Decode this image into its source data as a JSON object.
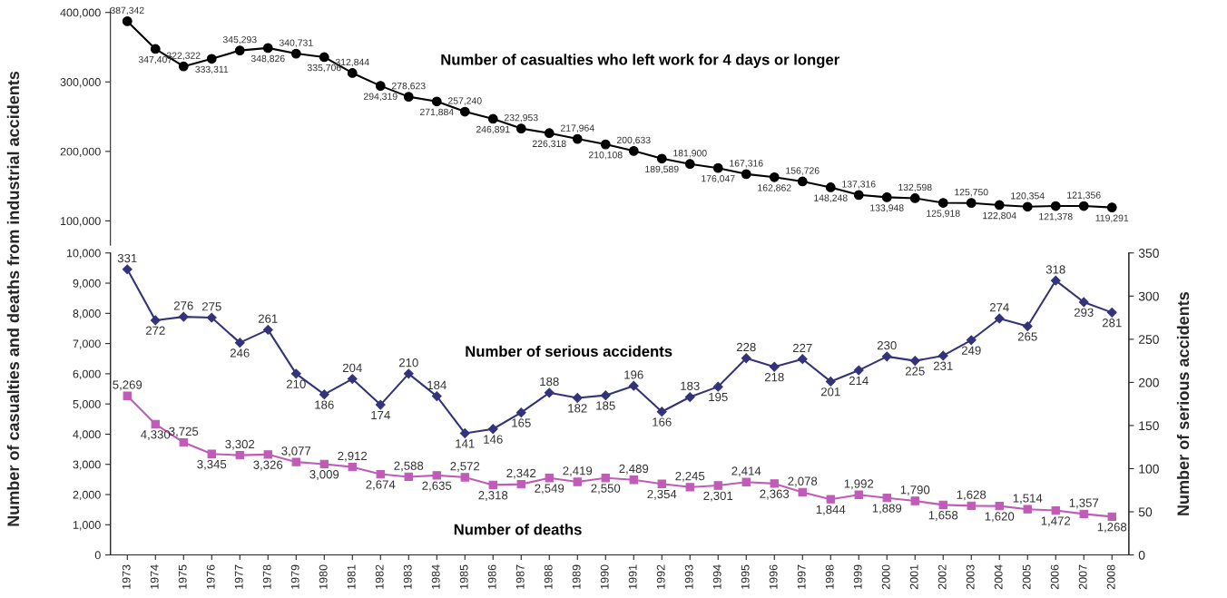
{
  "chart_data": [
    {
      "type": "line",
      "categories": [
        "1973",
        "1974",
        "1975",
        "1976",
        "1977",
        "1978",
        "1979",
        "1980",
        "1981",
        "1982",
        "1983",
        "1984",
        "1985",
        "1986",
        "1987",
        "1988",
        "1989",
        "1990",
        "1991",
        "1992",
        "1993",
        "1994",
        "1995",
        "1996",
        "1997",
        "1998",
        "1999",
        "2000",
        "2001",
        "2002",
        "2003",
        "2004",
        "2005",
        "2006",
        "2007",
        "2008"
      ],
      "series": [
        {
          "name": "Number of casualties who left work for 4 days or longer",
          "color": "#000000",
          "marker": "circle",
          "values": [
            387342,
            347407,
            322322,
            333311,
            345293,
            348826,
            340731,
            335706,
            312844,
            294319,
            278623,
            271884,
            257240,
            246891,
            232953,
            226318,
            217964,
            210108,
            200633,
            189589,
            181900,
            176047,
            167316,
            162862,
            156726,
            148248,
            137316,
            133948,
            132598,
            125918,
            125750,
            122804,
            120354,
            121378,
            121356,
            119291
          ],
          "value_labels": [
            "387,342",
            "347,407",
            "322,322",
            "333,311",
            "345,293",
            "348,826",
            "340,731",
            "335,706",
            "312,844",
            "294,319",
            "278,623",
            "271,884",
            "257,240",
            "246,891",
            "232,953",
            "226,318",
            "217,964",
            "210,108",
            "200,633",
            "189,589",
            "181,900",
            "176,047",
            "167,316",
            "162,862",
            "156,726",
            "148,248",
            "137,316",
            "133,948",
            "132,598",
            "125,918",
            "125,750",
            "122,804",
            "120,354",
            "121,378",
            "121,356",
            "119,291"
          ]
        }
      ],
      "ylim": [
        65000,
        405000
      ],
      "yticks": [
        {
          "value": 100000,
          "label": "100,000"
        },
        {
          "value": 200000,
          "label": "200,000"
        },
        {
          "value": 300000,
          "label": "300,000"
        },
        {
          "value": 400000,
          "label": "400,000"
        }
      ],
      "tick_labels": "y"
    },
    {
      "type": "line",
      "categories": [
        "1973",
        "1974",
        "1975",
        "1976",
        "1977",
        "1978",
        "1979",
        "1980",
        "1981",
        "1982",
        "1983",
        "1984",
        "1985",
        "1986",
        "1987",
        "1988",
        "1989",
        "1990",
        "1991",
        "1992",
        "1993",
        "1994",
        "1995",
        "1996",
        "1997",
        "1998",
        "1999",
        "2000",
        "2001",
        "2002",
        "2003",
        "2004",
        "2005",
        "2006",
        "2007",
        "2008"
      ],
      "ylabel": "Number of casualties and deaths from industrial accidents",
      "y2label": "Number of serious accidents",
      "series": [
        {
          "name": "Number of serious accidents",
          "color": "#33337a",
          "marker": "diamond",
          "axis": "y2",
          "values": [
            331,
            272,
            276,
            275,
            246,
            261,
            210,
            186,
            204,
            174,
            210,
            184,
            141,
            146,
            165,
            188,
            182,
            185,
            196,
            166,
            183,
            195,
            228,
            218,
            227,
            201,
            214,
            230,
            225,
            231,
            249,
            274,
            265,
            318,
            293,
            281
          ]
        },
        {
          "name": "Number of deaths",
          "color": "#c05cb8",
          "marker": "square",
          "values": [
            5269,
            4330,
            3725,
            3345,
            3302,
            3326,
            3077,
            3009,
            2912,
            2674,
            2588,
            2635,
            2572,
            2318,
            2342,
            2549,
            2419,
            2550,
            2489,
            2354,
            2245,
            2301,
            2414,
            2363,
            2078,
            1844,
            1992,
            1889,
            1790,
            1658,
            1628,
            1620,
            1514,
            1472,
            1357,
            1268
          ],
          "value_labels": [
            "5,269",
            "4,330",
            "3,725",
            "3,345",
            "3,302",
            "3,326",
            "3,077",
            "3,009",
            "2,912",
            "2,674",
            "2,588",
            "2,635",
            "2,572",
            "2,318",
            "2,342",
            "2,549",
            "2,419",
            "2,550",
            "2,489",
            "2,354",
            "2,245",
            "2,301",
            "2,414",
            "2,363",
            "2,078",
            "1,844",
            "1,992",
            "1,889",
            "1,790",
            "1,658",
            "1,628",
            "1,620",
            "1,514",
            "1,472",
            "1,357",
            "1,268"
          ]
        }
      ],
      "ylim": [
        0,
        10000
      ],
      "yticks": [
        0,
        {
          "value": 1000,
          "label": "1,000"
        },
        {
          "value": 2000,
          "label": "2,000"
        },
        {
          "value": 3000,
          "label": "3,000"
        },
        {
          "value": 4000,
          "label": "4,000"
        },
        {
          "value": 5000,
          "label": "5,000"
        },
        {
          "value": 6000,
          "label": "6,000"
        },
        {
          "value": 7000,
          "label": "7,000"
        },
        {
          "value": 8000,
          "label": "8,000"
        },
        {
          "value": 9000,
          "label": "9,000"
        },
        {
          "value": 10000,
          "label": "10,000"
        }
      ],
      "y2lim": [
        0,
        350
      ],
      "y2ticks": [
        0,
        50,
        100,
        150,
        200,
        250,
        300,
        350
      ],
      "data_labels": true
    }
  ]
}
